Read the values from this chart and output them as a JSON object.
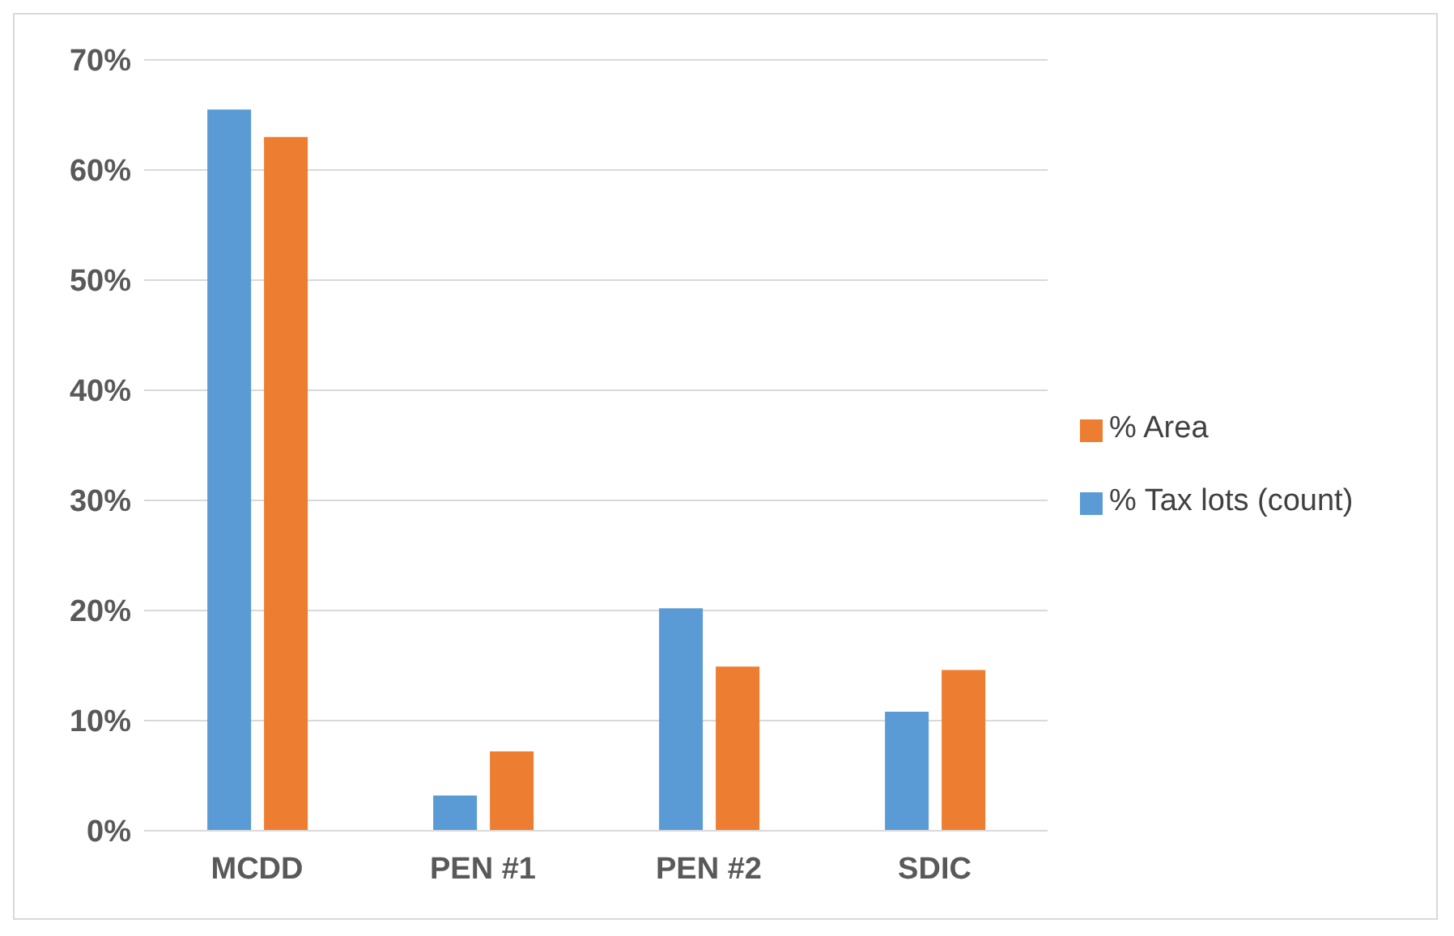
{
  "chart_data": {
    "type": "bar",
    "categories": [
      "MCDD",
      "PEN #1",
      "PEN #2",
      "SDIC"
    ],
    "series": [
      {
        "name": "% Tax lots (count)",
        "color": "#5b9bd5",
        "values": [
          65.5,
          3.2,
          20.2,
          10.8
        ]
      },
      {
        "name": "% Area",
        "color": "#ed7d31",
        "values": [
          63,
          7.2,
          14.9,
          14.6
        ]
      }
    ],
    "ylim": [
      0,
      70
    ],
    "yticks": [
      {
        "value": 0,
        "label": "0%"
      },
      {
        "value": 10,
        "label": "10%"
      },
      {
        "value": 20,
        "label": "20%"
      },
      {
        "value": 30,
        "label": "30%"
      },
      {
        "value": 40,
        "label": "40%"
      },
      {
        "value": 50,
        "label": "50%"
      },
      {
        "value": 60,
        "label": "60%"
      },
      {
        "value": 70,
        "label": "70%"
      }
    ],
    "grid": "y",
    "legend": "right"
  }
}
